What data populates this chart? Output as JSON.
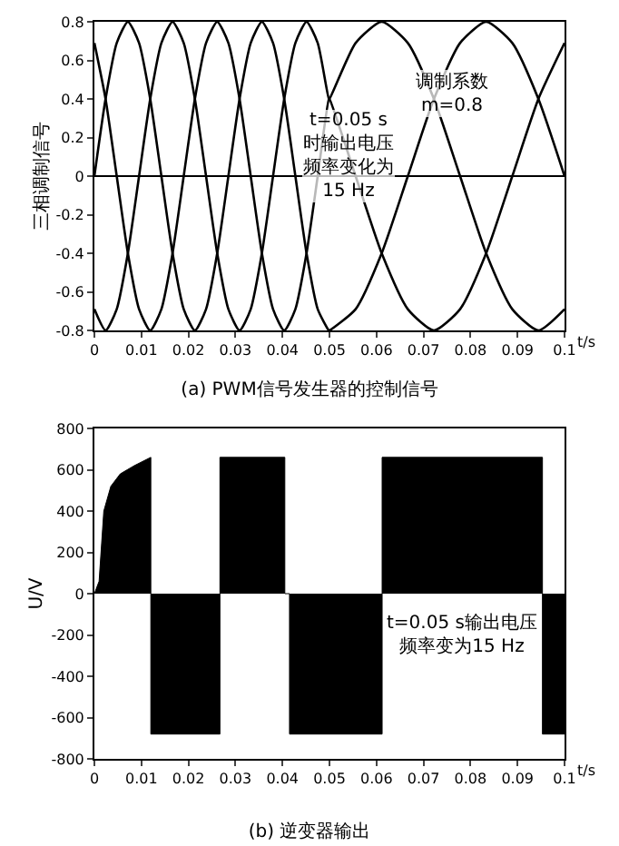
{
  "chart_data": [
    {
      "type": "line",
      "title": "(a) PWM信号发生器的控制信号",
      "xlabel": "t/s",
      "ylabel": "三相调制信号",
      "xlim": [
        0,
        0.1
      ],
      "ylim": [
        -0.8,
        0.8
      ],
      "xticks": [
        0,
        0.01,
        0.02,
        0.03,
        0.04,
        0.05,
        0.06,
        0.07,
        0.08,
        0.09,
        0.1
      ],
      "yticks": [
        -0.8,
        -0.6,
        -0.4,
        -0.2,
        0,
        0.2,
        0.4,
        0.6,
        0.8
      ],
      "grid": false,
      "marker": "none",
      "line_style": "solid",
      "ref_lines": [
        {
          "axis": "y",
          "value": 0,
          "color": "#000000"
        }
      ],
      "annotations": [
        "t=0.05 s时输出电压频率变化为15 Hz",
        "调制系数m=0.8"
      ],
      "series": [
        {
          "color": "#000000",
          "x": [
            0,
            0.002375,
            0.00475,
            0.007125,
            0.0095,
            0.011875,
            0.01425,
            0.016625,
            0.019,
            0.021375,
            0.02375,
            0.026125,
            0.0285,
            0.030875,
            0.03325,
            0.035625,
            0.038,
            0.040375,
            0.04275,
            0.045125,
            0.0475,
            0.049875,
            0.05,
            0.05556,
            0.06111,
            0.06667,
            0.07222,
            0.07778,
            0.08333,
            0.08889,
            0.09444,
            0.1
          ],
          "values": [
            0,
            0.4,
            0.69,
            0.8,
            0.69,
            0.4,
            0,
            -0.4,
            -0.69,
            -0.8,
            -0.69,
            -0.4,
            0,
            0.4,
            0.69,
            0.8,
            0.69,
            0.4,
            0,
            -0.4,
            -0.69,
            -0.8,
            -0.8,
            -0.69,
            -0.4,
            0,
            0.4,
            0.69,
            0.8,
            0.69,
            0.4,
            0
          ]
        },
        {
          "color": "#000000",
          "x": [
            0,
            0.002375,
            0.00475,
            0.007125,
            0.0095,
            0.011875,
            0.01425,
            0.016625,
            0.019,
            0.021375,
            0.02375,
            0.026125,
            0.0285,
            0.030875,
            0.03325,
            0.035625,
            0.038,
            0.040375,
            0.04275,
            0.045125,
            0.0475,
            0.049875,
            0.05,
            0.05556,
            0.06111,
            0.06667,
            0.07222,
            0.07778,
            0.08333,
            0.08889,
            0.09444,
            0.1
          ],
          "values": [
            -0.69,
            -0.8,
            -0.69,
            -0.4,
            0,
            0.4,
            0.69,
            0.8,
            0.69,
            0.4,
            0,
            -0.4,
            -0.69,
            -0.8,
            -0.69,
            -0.4,
            0,
            0.4,
            0.69,
            0.8,
            0.69,
            0.4,
            0.4,
            0,
            -0.4,
            -0.69,
            -0.8,
            -0.69,
            -0.4,
            0,
            0.4,
            0.69
          ]
        },
        {
          "color": "#000000",
          "x": [
            0,
            0.002375,
            0.00475,
            0.007125,
            0.0095,
            0.011875,
            0.01425,
            0.016625,
            0.019,
            0.021375,
            0.02375,
            0.026125,
            0.0285,
            0.030875,
            0.03325,
            0.035625,
            0.038,
            0.040375,
            0.04275,
            0.045125,
            0.0475,
            0.049875,
            0.05,
            0.05556,
            0.06111,
            0.06667,
            0.07222,
            0.07778,
            0.08333,
            0.08889,
            0.09444,
            0.1
          ],
          "values": [
            0.69,
            0.4,
            0,
            -0.4,
            -0.69,
            -0.8,
            -0.69,
            -0.4,
            0,
            0.4,
            0.69,
            0.8,
            0.69,
            0.4,
            0,
            -0.4,
            -0.69,
            -0.8,
            -0.69,
            -0.4,
            0,
            0.4,
            0.4,
            0.69,
            0.8,
            0.69,
            0.4,
            0,
            -0.4,
            -0.69,
            -0.8,
            -0.69
          ]
        }
      ]
    },
    {
      "type": "area",
      "title": "(b) 逆变器输出",
      "xlabel": "t/s",
      "ylabel": "U/V",
      "xlim": [
        0,
        0.1
      ],
      "ylim": [
        -800,
        800
      ],
      "xticks": [
        0,
        0.01,
        0.02,
        0.03,
        0.04,
        0.05,
        0.06,
        0.07,
        0.08,
        0.09,
        0.1
      ],
      "yticks": [
        -800,
        -600,
        -400,
        -200,
        0,
        200,
        400,
        600,
        800
      ],
      "grid": false,
      "annotations": [
        "t=0.05 s输出电压频率变为15 Hz"
      ],
      "series": [
        {
          "color": "#000000",
          "x": [
            0,
            0.001,
            0.002,
            0.0035,
            0.0055,
            0.0085,
            0.012,
            0.012,
            0.0267,
            0.0267,
            0.0405,
            0.0405,
            0.0415,
            0.0415,
            0.0612,
            0.0612,
            0.0953,
            0.0953,
            0.1
          ],
          "values": [
            0,
            60,
            400,
            520,
            580,
            620,
            660,
            -680,
            -680,
            660,
            660,
            0,
            0,
            -680,
            -680,
            660,
            660,
            -680,
            -680
          ]
        }
      ]
    }
  ]
}
